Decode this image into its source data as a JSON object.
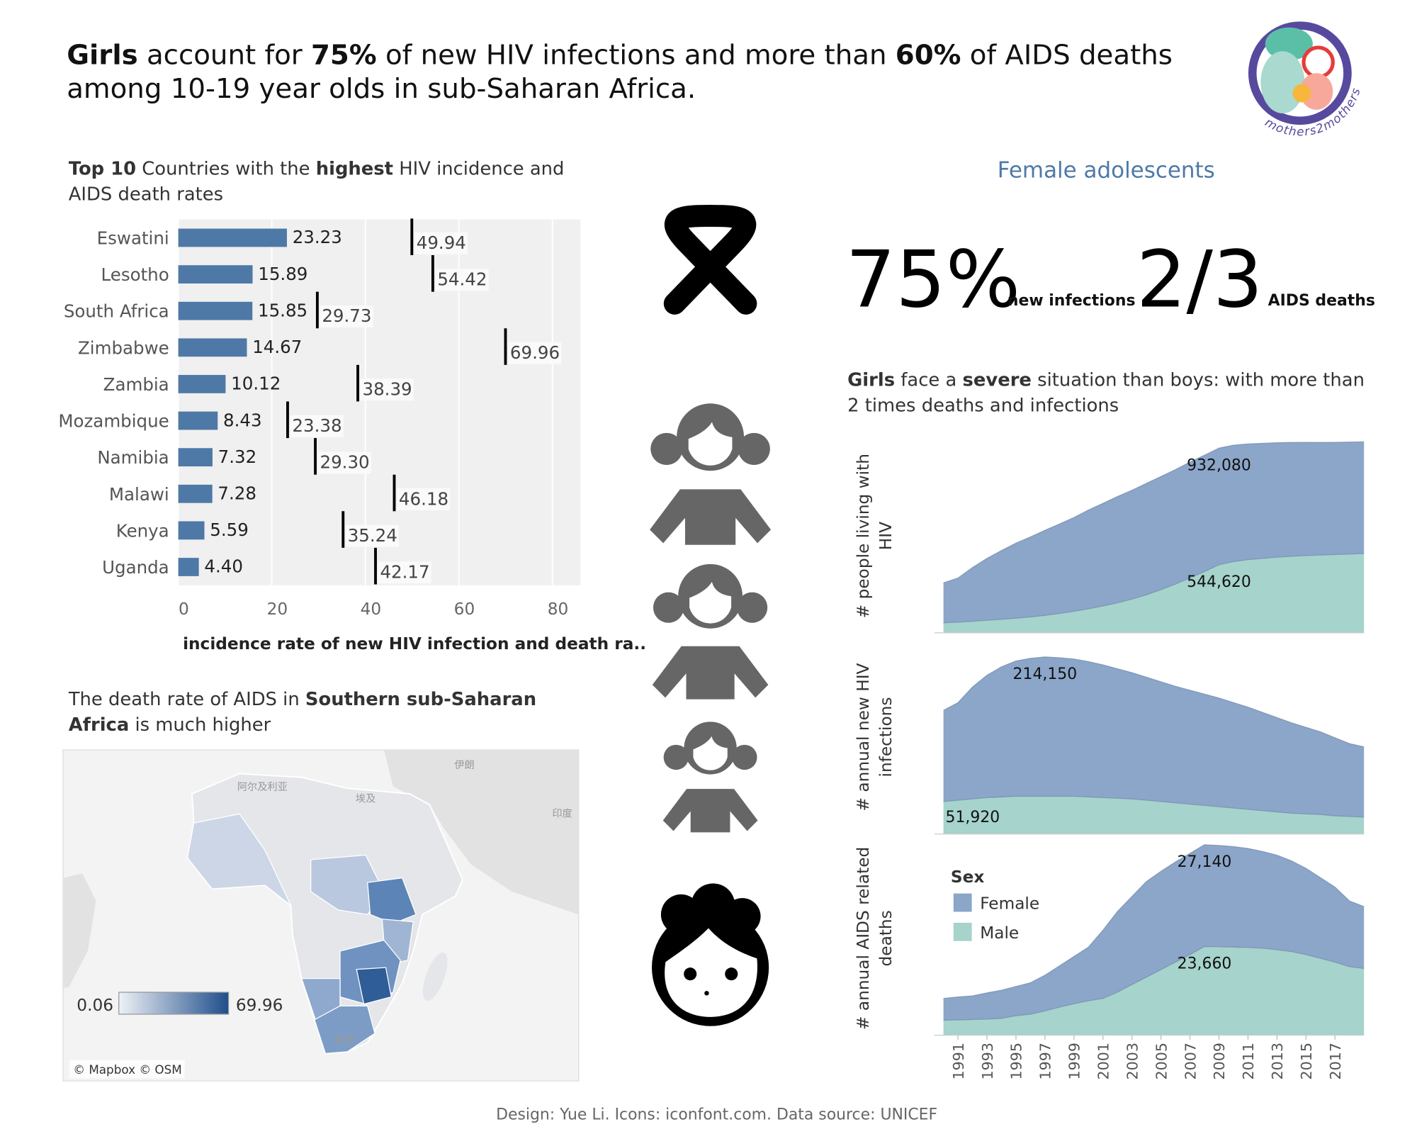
{
  "title_parts": [
    {
      "text": "Girls",
      "bold": true
    },
    {
      "text": " account for ",
      "bold": false
    },
    {
      "text": "75%",
      "bold": true
    },
    {
      "text": " of new HIV infections and more than ",
      "bold": false
    },
    {
      "text": "60%",
      "bold": true
    },
    {
      "text": " of AIDS deaths among 10-19 year olds in sub-Saharan Africa.",
      "bold": false
    }
  ],
  "logo_text": "mothers2mothers",
  "stats": {
    "heading": "Female adolescents",
    "items": [
      {
        "value": "75%",
        "label": "new infections"
      },
      {
        "value": "2/3",
        "label": "AIDS deaths"
      }
    ]
  },
  "area_section": {
    "title_parts": [
      {
        "text": "Girls",
        "bold": true
      },
      {
        "text": " face a ",
        "bold": false
      },
      {
        "text": "severe",
        "bold": true
      },
      {
        "text": " situation than boys: with more than 2 times deaths and infections",
        "bold": false
      }
    ]
  },
  "footer": "Design: Yue Li. Icons: iconfont.com. Data source: UNICEF",
  "chart_data": [
    {
      "type": "bar",
      "orientation": "horizontal",
      "title_parts": [
        {
          "text": "Top 10",
          "bold": true
        },
        {
          "text": " Countries with the ",
          "bold": false
        },
        {
          "text": "highest",
          "bold": true
        },
        {
          "text": " HIV incidence and AIDS death rates",
          "bold": false
        }
      ],
      "categories": [
        "Eswatini",
        "Lesotho",
        "South Africa",
        "Zimbabwe",
        "Zambia",
        "Mozambique",
        "Namibia",
        "Malawi",
        "Kenya",
        "Uganda"
      ],
      "series": [
        {
          "style": "bar",
          "color": "#4e79a7",
          "values": [
            23.23,
            15.89,
            15.85,
            14.67,
            10.12,
            8.43,
            7.32,
            7.28,
            5.59,
            4.4
          ],
          "value_labels": [
            "23.23",
            "15.89",
            "15.85",
            "14.67",
            "10.12",
            "8.43",
            "7.32",
            "7.28",
            "5.59",
            "4.40"
          ]
        },
        {
          "style": "tick",
          "color": "#000000",
          "values": [
            49.94,
            54.42,
            29.73,
            69.96,
            38.39,
            23.38,
            29.3,
            46.18,
            35.24,
            42.17
          ],
          "value_labels": [
            "49.94",
            "54.42",
            "29.73",
            "69.96",
            "38.39",
            "23.38",
            "29.30",
            "46.18",
            "35.24",
            "42.17"
          ]
        }
      ],
      "xlim": [
        0,
        86
      ],
      "xticks": [
        0,
        20,
        40,
        60,
        80
      ],
      "xlabel": "incidence rate of new HIV infection and death ra..",
      "grid": true,
      "background": "#f0f0f0"
    },
    {
      "type": "map",
      "title_parts": [
        {
          "text": "The death rate of AIDS in ",
          "bold": false
        },
        {
          "text": "Southern sub-Saharan Africa",
          "bold": true
        },
        {
          "text": " is much higher",
          "bold": false
        }
      ],
      "colorscale": [
        "#eef1f6",
        "#1f4e8c"
      ],
      "legend_range": [
        0.06,
        69.96
      ],
      "place_labels": [
        "阿尔及利亚",
        "埃及",
        "伊朗",
        "印度",
        "南非"
      ],
      "attribution": "© Mapbox © OSM"
    },
    {
      "type": "area",
      "stacked": true,
      "ylabel": "# people living with HIV",
      "x": [
        1990,
        1991,
        1992,
        1993,
        1994,
        1995,
        1996,
        1997,
        1998,
        1999,
        2000,
        2001,
        2002,
        2003,
        2004,
        2005,
        2006,
        2007,
        2008,
        2009,
        2010,
        2011,
        2012,
        2013,
        2014,
        2015,
        2016,
        2017,
        2018,
        2019
      ],
      "xlim": [
        1990,
        2019
      ],
      "ylim": [
        0,
        1550000
      ],
      "series": [
        {
          "name": "Female",
          "color": "#8ca6c9",
          "values": [
            320000,
            353000,
            430000,
            495000,
            550000,
            600000,
            640000,
            680000,
            715000,
            750000,
            790000,
            820000,
            850000,
            870000,
            890000,
            905000,
            915000,
            925000,
            930000,
            932080,
            930000,
            925000,
            920000,
            915000,
            910000,
            905000,
            900000,
            897000,
            895000,
            893000
          ],
          "value_labels": [
            null,
            null,
            null,
            null,
            null,
            null,
            null,
            null,
            null,
            null,
            null,
            null,
            null,
            null,
            null,
            null,
            null,
            null,
            null,
            "932,080",
            null,
            null,
            null,
            null,
            null,
            null,
            null,
            null,
            null,
            null
          ]
        },
        {
          "name": "Male",
          "color": "#a6d3cc",
          "values": [
            80000,
            85000,
            92000,
            100000,
            108000,
            117000,
            127000,
            140000,
            155000,
            172000,
            192000,
            215000,
            240000,
            270000,
            305000,
            345000,
            390000,
            440000,
            490000,
            544620,
            570000,
            585000,
            595000,
            605000,
            612000,
            618000,
            622000,
            626000,
            630000,
            634000
          ],
          "value_labels": [
            null,
            null,
            null,
            null,
            null,
            null,
            null,
            null,
            null,
            null,
            null,
            null,
            null,
            null,
            null,
            null,
            null,
            null,
            null,
            "544,620",
            null,
            null,
            null,
            null,
            null,
            null,
            null,
            null,
            null,
            null
          ]
        }
      ]
    },
    {
      "type": "area",
      "stacked": true,
      "ylabel": "# annual new HIV infections",
      "x": [
        1990,
        1991,
        1992,
        1993,
        1994,
        1995,
        1996,
        1997,
        1998,
        1999,
        2000,
        2001,
        2002,
        2003,
        2004,
        2005,
        2006,
        2007,
        2008,
        2009,
        2010,
        2011,
        2012,
        2013,
        2014,
        2015,
        2016,
        2017,
        2018,
        2019
      ],
      "xlim": [
        1990,
        2019
      ],
      "ylim": [
        0,
        298000
      ],
      "series": [
        {
          "name": "Female",
          "color": "#8ca6c9",
          "values": [
            140000,
            150000,
            172000,
            188000,
            200000,
            208000,
            212000,
            214150,
            213000,
            211000,
            208000,
            204000,
            199000,
            194000,
            189000,
            184000,
            179000,
            175000,
            171000,
            167000,
            162000,
            157000,
            151000,
            145000,
            139000,
            133000,
            127000,
            120000,
            112000,
            108000
          ],
          "value_labels": [
            null,
            null,
            null,
            null,
            null,
            null,
            null,
            "214,150",
            null,
            null,
            null,
            null,
            null,
            null,
            null,
            null,
            null,
            null,
            null,
            null,
            null,
            null,
            null,
            null,
            null,
            null,
            null,
            null,
            null,
            null
          ]
        },
        {
          "name": "Male",
          "color": "#a6d3cc",
          "values": [
            50000,
            51920,
            54000,
            56000,
            57000,
            58000,
            58000,
            58000,
            58000,
            58000,
            57000,
            56000,
            55000,
            54000,
            52000,
            50000,
            48000,
            46000,
            44000,
            42000,
            40000,
            38000,
            36000,
            34000,
            32000,
            31000,
            30000,
            28000,
            27000,
            26000
          ],
          "value_labels": [
            null,
            "51,920",
            null,
            null,
            null,
            null,
            null,
            null,
            null,
            null,
            null,
            null,
            null,
            null,
            null,
            null,
            null,
            null,
            null,
            null,
            null,
            null,
            null,
            null,
            null,
            null,
            null,
            null,
            null,
            null
          ]
        }
      ]
    },
    {
      "type": "area",
      "stacked": true,
      "ylabel": "# annual AIDS related deaths",
      "x": [
        1990,
        1991,
        1992,
        1993,
        1994,
        1995,
        1996,
        1997,
        1998,
        1999,
        2000,
        2001,
        2002,
        2003,
        2004,
        2005,
        2006,
        2007,
        2008,
        2009,
        2010,
        2011,
        2012,
        2013,
        2014,
        2015,
        2016,
        2017,
        2018,
        2019
      ],
      "xlim": [
        1990,
        2019
      ],
      "xticks": [
        1991,
        1993,
        1995,
        1997,
        1999,
        2001,
        2003,
        2005,
        2007,
        2009,
        2011,
        2013,
        2015,
        2017
      ],
      "ylim": [
        0,
        51700
      ],
      "legend": true,
      "legend_title": "Sex",
      "series": [
        {
          "name": "Female",
          "color": "#8ca6c9",
          "values": [
            5800,
            6100,
            6300,
            7000,
            7500,
            7800,
            8400,
            9500,
            11000,
            12600,
            14300,
            18200,
            21500,
            23500,
            25500,
            26200,
            26700,
            27000,
            27140,
            27000,
            26800,
            26400,
            25800,
            25200,
            24200,
            23000,
            21500,
            20000,
            17500,
            16500
          ],
          "value_labels": [
            null,
            null,
            null,
            null,
            null,
            null,
            null,
            null,
            null,
            null,
            null,
            null,
            null,
            null,
            null,
            null,
            null,
            null,
            "27,140",
            null,
            null,
            null,
            null,
            null,
            null,
            null,
            null,
            null,
            null,
            null
          ]
        },
        {
          "name": "Male",
          "color": "#a6d3cc",
          "values": [
            4000,
            4100,
            4200,
            4300,
            4500,
            5200,
            5600,
            6500,
            7500,
            8400,
            9200,
            9800,
            11500,
            13500,
            15500,
            17500,
            19500,
            21500,
            23660,
            23600,
            23500,
            23400,
            23200,
            22800,
            22300,
            21500,
            20500,
            19500,
            18300,
            17800
          ],
          "value_labels": [
            null,
            null,
            null,
            null,
            null,
            null,
            null,
            null,
            null,
            null,
            null,
            null,
            null,
            null,
            null,
            null,
            null,
            null,
            "23,660",
            null,
            null,
            null,
            null,
            null,
            null,
            null,
            null,
            null,
            null,
            null
          ]
        }
      ]
    }
  ]
}
